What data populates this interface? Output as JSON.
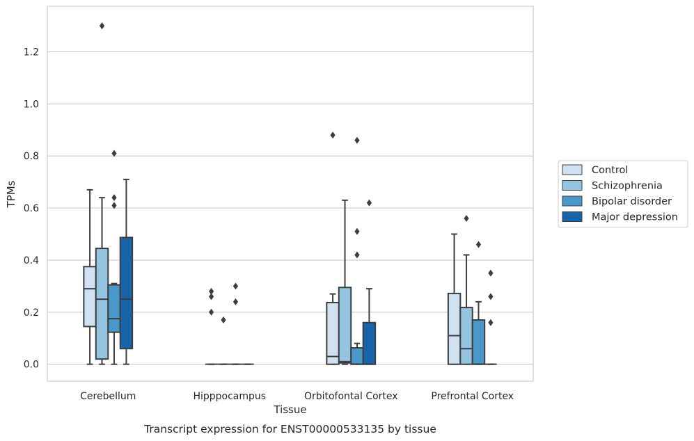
{
  "chart_data": {
    "type": "box",
    "title": "",
    "caption": "Transcript expression for ENST00000533135 by tissue",
    "xlabel": "Tissue",
    "ylabel": "TPMs",
    "ylim": [
      -0.065,
      1.375
    ],
    "yticks": [
      0.0,
      0.2,
      0.4,
      0.6,
      0.8,
      1.0,
      1.2
    ],
    "ytick_labels": [
      "0.0",
      "0.2",
      "0.4",
      "0.6",
      "0.8",
      "1.0",
      "1.2"
    ],
    "grid": "horizontal",
    "legend_position": "right",
    "categories": [
      "Cerebellum",
      "Hipppocampus",
      "Orbitofontal Cortex",
      "Prefrontal Cortex"
    ],
    "series": [
      {
        "name": "Control",
        "color": "#d0e1f2",
        "boxes": [
          {
            "whisker_low": 0.0,
            "q1": 0.145,
            "median": 0.29,
            "q3": 0.375,
            "whisker_high": 0.67,
            "outliers": []
          },
          {
            "whisker_low": 0.0,
            "q1": 0.0,
            "median": 0.0,
            "q3": 0.0,
            "whisker_high": 0.0,
            "outliers": [
              0.28,
              0.26,
              0.2
            ]
          },
          {
            "whisker_low": 0.0,
            "q1": 0.0,
            "median": 0.03,
            "q3": 0.237,
            "whisker_high": 0.27,
            "outliers": [
              0.88
            ]
          },
          {
            "whisker_low": 0.0,
            "q1": 0.0,
            "median": 0.11,
            "q3": 0.272,
            "whisker_high": 0.5,
            "outliers": []
          }
        ]
      },
      {
        "name": "Schizophrenia",
        "color": "#94c4df",
        "boxes": [
          {
            "whisker_low": 0.0,
            "q1": 0.02,
            "median": 0.25,
            "q3": 0.445,
            "whisker_high": 0.64,
            "outliers": [
              1.3
            ]
          },
          {
            "whisker_low": 0.0,
            "q1": 0.0,
            "median": 0.0,
            "q3": 0.0,
            "whisker_high": 0.0,
            "outliers": [
              0.17
            ]
          },
          {
            "whisker_low": 0.0,
            "q1": 0.005,
            "median": 0.01,
            "q3": 0.295,
            "whisker_high": 0.63,
            "outliers": []
          },
          {
            "whisker_low": 0.0,
            "q1": 0.0,
            "median": 0.06,
            "q3": 0.218,
            "whisker_high": 0.42,
            "outliers": [
              0.56
            ]
          }
        ]
      },
      {
        "name": "Bipolar disorder",
        "color": "#4a98c9",
        "boxes": [
          {
            "whisker_low": 0.0,
            "q1": 0.123,
            "median": 0.175,
            "q3": 0.305,
            "whisker_high": 0.31,
            "outliers": [
              0.81,
              0.64,
              0.61
            ]
          },
          {
            "whisker_low": 0.0,
            "q1": 0.0,
            "median": 0.0,
            "q3": 0.0,
            "whisker_high": 0.0,
            "outliers": [
              0.3,
              0.24
            ]
          },
          {
            "whisker_low": 0.0,
            "q1": 0.0,
            "median": 0.0,
            "q3": 0.063,
            "whisker_high": 0.08,
            "outliers": [
              0.86,
              0.51,
              0.42
            ]
          },
          {
            "whisker_low": 0.0,
            "q1": 0.0,
            "median": 0.0,
            "q3": 0.17,
            "whisker_high": 0.24,
            "outliers": [
              0.46
            ]
          }
        ]
      },
      {
        "name": "Major depression",
        "color": "#1764ab",
        "boxes": [
          {
            "whisker_low": 0.0,
            "q1": 0.06,
            "median": 0.25,
            "q3": 0.487,
            "whisker_high": 0.71,
            "outliers": []
          },
          {
            "whisker_low": 0.0,
            "q1": 0.0,
            "median": 0.0,
            "q3": 0.0,
            "whisker_high": 0.0,
            "outliers": []
          },
          {
            "whisker_low": 0.0,
            "q1": 0.0,
            "median": 0.0,
            "q3": 0.16,
            "whisker_high": 0.29,
            "outliers": [
              0.62
            ]
          },
          {
            "whisker_low": 0.0,
            "q1": 0.0,
            "median": 0.0,
            "q3": 0.0,
            "whisker_high": 0.0,
            "outliers": [
              0.35,
              0.26,
              0.16
            ]
          }
        ]
      }
    ]
  }
}
